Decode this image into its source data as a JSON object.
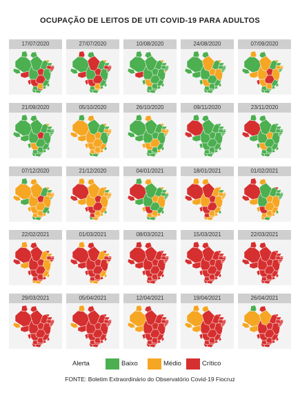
{
  "title": "OCUPAÇÃO DE LEITOS DE UTI COVID-19 PARA ADULTOS",
  "colors": {
    "baixo": "#4caf50",
    "medio": "#f5a623",
    "critico": "#d62f2f"
  },
  "maps": [
    {
      "date": "17/07/2020",
      "regions": [
        "g",
        "g",
        "g",
        "g",
        "g",
        "r",
        "g",
        "g",
        "r",
        "o",
        "g",
        "r",
        "r",
        "r",
        "g",
        "g",
        "r",
        "g",
        "g",
        "g",
        "r",
        "o",
        "r",
        "g",
        "g",
        "g",
        "r"
      ]
    },
    {
      "date": "27/07/2020",
      "regions": [
        "g",
        "r",
        "g",
        "r",
        "g",
        "r",
        "g",
        "g",
        "r",
        "o",
        "g",
        "r",
        "r",
        "r",
        "g",
        "g",
        "r",
        "g",
        "g",
        "g",
        "r",
        "o",
        "o",
        "g",
        "g",
        "g",
        "r"
      ]
    },
    {
      "date": "10/08/2020",
      "regions": [
        "g",
        "g",
        "g",
        "g",
        "g",
        "r",
        "g",
        "g",
        "g",
        "o",
        "g",
        "g",
        "g",
        "g",
        "o",
        "g",
        "g",
        "g",
        "g",
        "g",
        "o",
        "g",
        "g",
        "g",
        "g",
        "g",
        "g"
      ]
    },
    {
      "date": "24/08/2020",
      "regions": [
        "g",
        "g",
        "g",
        "o",
        "g",
        "g",
        "g",
        "g",
        "o",
        "o",
        "g",
        "g",
        "g",
        "g",
        "g",
        "o",
        "g",
        "g",
        "g",
        "g",
        "o",
        "g",
        "g",
        "g",
        "g",
        "g",
        "g"
      ]
    },
    {
      "date": "07/09/2020",
      "regions": [
        "g",
        "o",
        "g",
        "o",
        "g",
        "o",
        "o",
        "g",
        "r",
        "o",
        "g",
        "o",
        "o",
        "g",
        "g",
        "o",
        "r",
        "g",
        "g",
        "g",
        "o",
        "o",
        "g",
        "g",
        "g",
        "g",
        "r"
      ]
    },
    {
      "date": "21/09/2020",
      "regions": [
        "g",
        "g",
        "g",
        "g",
        "g",
        "g",
        "g",
        "g",
        "r",
        "o",
        "g",
        "g",
        "g",
        "g",
        "g",
        "g",
        "g",
        "g",
        "g",
        "g",
        "o",
        "g",
        "g",
        "g",
        "g",
        "g",
        "g"
      ]
    },
    {
      "date": "05/10/2020",
      "regions": [
        "o",
        "g",
        "o",
        "g",
        "o",
        "o",
        "o",
        "g",
        "o",
        "o",
        "g",
        "o",
        "o",
        "o",
        "g",
        "g",
        "o",
        "o",
        "g",
        "o",
        "o",
        "o",
        "o",
        "g",
        "o",
        "g",
        "o"
      ]
    },
    {
      "date": "26/10/2020",
      "regions": [
        "g",
        "g",
        "o",
        "g",
        "g",
        "g",
        "g",
        "g",
        "g",
        "o",
        "g",
        "o",
        "o",
        "o",
        "g",
        "g",
        "o",
        "g",
        "g",
        "o",
        "o",
        "g",
        "g",
        "g",
        "g",
        "g",
        "o"
      ]
    },
    {
      "date": "09/11/2020",
      "regions": [
        "r",
        "g",
        "g",
        "g",
        "r",
        "g",
        "g",
        "g",
        "g",
        "g",
        "g",
        "g",
        "g",
        "g",
        "g",
        "g",
        "g",
        "g",
        "g",
        "g",
        "g",
        "g",
        "g",
        "g",
        "g",
        "g",
        "g"
      ]
    },
    {
      "date": "23/11/2020",
      "regions": [
        "r",
        "g",
        "g",
        "g",
        "r",
        "g",
        "g",
        "g",
        "o",
        "g",
        "g",
        "g",
        "g",
        "g",
        "g",
        "g",
        "g",
        "g",
        "g",
        "g",
        "o",
        "g",
        "g",
        "g",
        "g",
        "g",
        "g"
      ]
    },
    {
      "date": "07/12/2020",
      "regions": [
        "o",
        "g",
        "o",
        "o",
        "o",
        "g",
        "o",
        "g",
        "r",
        "o",
        "g",
        "o",
        "o",
        "o",
        "g",
        "o",
        "o",
        "g",
        "g",
        "o",
        "o",
        "o",
        "o",
        "g",
        "o",
        "g",
        "o"
      ]
    },
    {
      "date": "21/12/2020",
      "regions": [
        "r",
        "o",
        "o",
        "o",
        "r",
        "o",
        "o",
        "o",
        "r",
        "o",
        "g",
        "o",
        "o",
        "o",
        "o",
        "o",
        "r",
        "o",
        "g",
        "o",
        "r",
        "o",
        "o",
        "o",
        "r",
        "g",
        "r"
      ]
    },
    {
      "date": "04/01/2021",
      "regions": [
        "r",
        "g",
        "o",
        "g",
        "r",
        "g",
        "g",
        "g",
        "o",
        "o",
        "g",
        "o",
        "g",
        "g",
        "g",
        "o",
        "g",
        "g",
        "g",
        "o",
        "r",
        "o",
        "o",
        "g",
        "o",
        "g",
        "o"
      ]
    },
    {
      "date": "18/01/2021",
      "regions": [
        "r",
        "o",
        "o",
        "r",
        "r",
        "o",
        "o",
        "o",
        "r",
        "o",
        "g",
        "o",
        "o",
        "o",
        "o",
        "o",
        "r",
        "o",
        "g",
        "o",
        "r",
        "o",
        "o",
        "o",
        "r",
        "o",
        "r"
      ]
    },
    {
      "date": "01/02/2021",
      "regions": [
        "r",
        "r",
        "o",
        "g",
        "r",
        "o",
        "g",
        "g",
        "o",
        "r",
        "g",
        "g",
        "g",
        "g",
        "g",
        "o",
        "o",
        "o",
        "g",
        "o",
        "r",
        "o",
        "o",
        "g",
        "o",
        "o",
        "o"
      ]
    },
    {
      "date": "22/02/2021",
      "regions": [
        "r",
        "o",
        "r",
        "r",
        "r",
        "o",
        "r",
        "o",
        "r",
        "r",
        "o",
        "r",
        "r",
        "r",
        "o",
        "o",
        "r",
        "o",
        "o",
        "r",
        "r",
        "r",
        "r",
        "o",
        "r",
        "o",
        "r"
      ]
    },
    {
      "date": "01/03/2021",
      "regions": [
        "r",
        "o",
        "r",
        "r",
        "r",
        "r",
        "r",
        "o",
        "r",
        "r",
        "o",
        "r",
        "r",
        "r",
        "o",
        "r",
        "r",
        "o",
        "o",
        "r",
        "r",
        "r",
        "r",
        "o",
        "r",
        "o",
        "r"
      ]
    },
    {
      "date": "08/03/2021",
      "regions": [
        "r",
        "r",
        "r",
        "r",
        "r",
        "r",
        "r",
        "r",
        "r",
        "r",
        "r",
        "r",
        "r",
        "r",
        "r",
        "r",
        "r",
        "r",
        "r",
        "r",
        "r",
        "r",
        "r",
        "r",
        "r",
        "r",
        "r"
      ]
    },
    {
      "date": "15/03/2021",
      "regions": [
        "r",
        "r",
        "r",
        "r",
        "r",
        "r",
        "r",
        "r",
        "r",
        "r",
        "r",
        "r",
        "r",
        "r",
        "r",
        "r",
        "r",
        "r",
        "r",
        "r",
        "r",
        "r",
        "r",
        "r",
        "r",
        "r",
        "r"
      ]
    },
    {
      "date": "22/03/2021",
      "regions": [
        "r",
        "r",
        "r",
        "r",
        "r",
        "r",
        "r",
        "r",
        "r",
        "r",
        "r",
        "r",
        "r",
        "r",
        "r",
        "r",
        "r",
        "r",
        "r",
        "r",
        "r",
        "r",
        "r",
        "r",
        "r",
        "r",
        "r"
      ]
    },
    {
      "date": "29/03/2021",
      "regions": [
        "r",
        "r",
        "r",
        "r",
        "o",
        "r",
        "r",
        "r",
        "r",
        "r",
        "r",
        "r",
        "r",
        "r",
        "r",
        "r",
        "r",
        "r",
        "r",
        "r",
        "r",
        "r",
        "r",
        "r",
        "r",
        "r",
        "r"
      ]
    },
    {
      "date": "05/04/2021",
      "regions": [
        "r",
        "o",
        "r",
        "r",
        "o",
        "r",
        "r",
        "r",
        "r",
        "r",
        "r",
        "r",
        "r",
        "r",
        "r",
        "r",
        "r",
        "r",
        "r",
        "r",
        "r",
        "r",
        "r",
        "r",
        "r",
        "r",
        "r"
      ]
    },
    {
      "date": "12/04/2021",
      "regions": [
        "o",
        "o",
        "r",
        "r",
        "o",
        "o",
        "r",
        "r",
        "r",
        "r",
        "r",
        "r",
        "r",
        "r",
        "r",
        "r",
        "r",
        "r",
        "r",
        "r",
        "r",
        "r",
        "r",
        "r",
        "r",
        "r",
        "r"
      ]
    },
    {
      "date": "19/04/2021",
      "regions": [
        "o",
        "o",
        "o",
        "r",
        "o",
        "o",
        "r",
        "r",
        "r",
        "r",
        "r",
        "r",
        "r",
        "r",
        "r",
        "r",
        "r",
        "r",
        "r",
        "r",
        "r",
        "r",
        "r",
        "r",
        "r",
        "r",
        "r"
      ]
    },
    {
      "date": "26/04/2021",
      "regions": [
        "o",
        "g",
        "r",
        "o",
        "o",
        "o",
        "r",
        "r",
        "r",
        "r",
        "r",
        "r",
        "r",
        "r",
        "r",
        "r",
        "r",
        "r",
        "r",
        "r",
        "r",
        "r",
        "r",
        "r",
        "r",
        "r",
        "r"
      ]
    }
  ],
  "legend": {
    "title": "Alerta",
    "items": [
      {
        "key": "baixo",
        "label": "Baixo"
      },
      {
        "key": "medio",
        "label": "Médio"
      },
      {
        "key": "critico",
        "label": "Crítico"
      }
    ]
  },
  "source": "FONTE: Boletim Extraordinário do Observatório Covid-19 Fiocruz"
}
